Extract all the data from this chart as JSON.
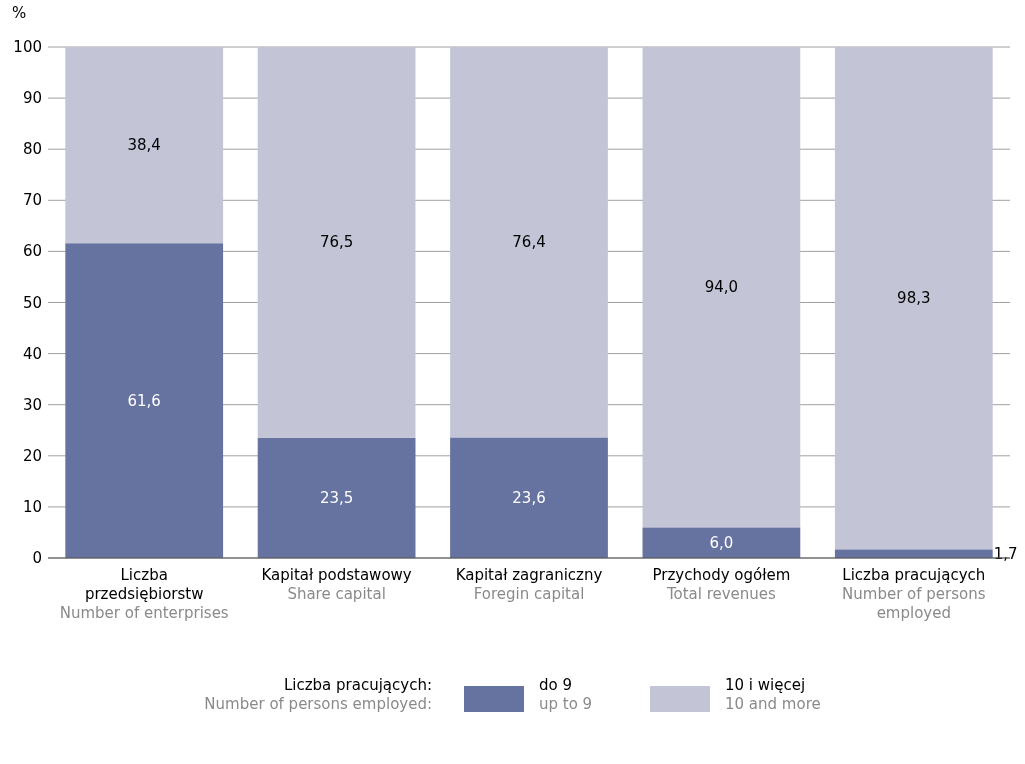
{
  "chart_data": {
    "type": "bar",
    "stacked": true,
    "ylabel": "%",
    "ylim": [
      0,
      100
    ],
    "yticks": [
      0,
      10,
      20,
      30,
      40,
      50,
      60,
      70,
      80,
      90,
      100
    ],
    "grid": "y",
    "legend": "bottom",
    "legend_title": "Liczba pracujących:\nNumber of persons employed:",
    "categories": [
      "Liczba przedsiębiorstw\nNumber of enterprises",
      "Kapitał podstawowy\nShare capital",
      "Kapitał zagraniczny\nForegin capital",
      "Przychody ogółem\nTotal revenues",
      "Liczba pracujących\nNumber of persons employed"
    ],
    "series": [
      {
        "name": "do 9\nup to 9",
        "color": "#6673a0",
        "values": [
          61.6,
          23.5,
          23.6,
          6.0,
          1.7
        ],
        "value_labels": [
          "61,6",
          "23,5",
          "23,6",
          "6,0",
          "1,7"
        ]
      },
      {
        "name": "10 i więcej\n10 and more",
        "color": "#c3c5d6",
        "values": [
          38.4,
          76.5,
          76.4,
          94.0,
          98.3
        ],
        "value_labels": [
          "38,4",
          "76,5",
          "76,4",
          "94,0",
          "98,3"
        ]
      }
    ]
  }
}
